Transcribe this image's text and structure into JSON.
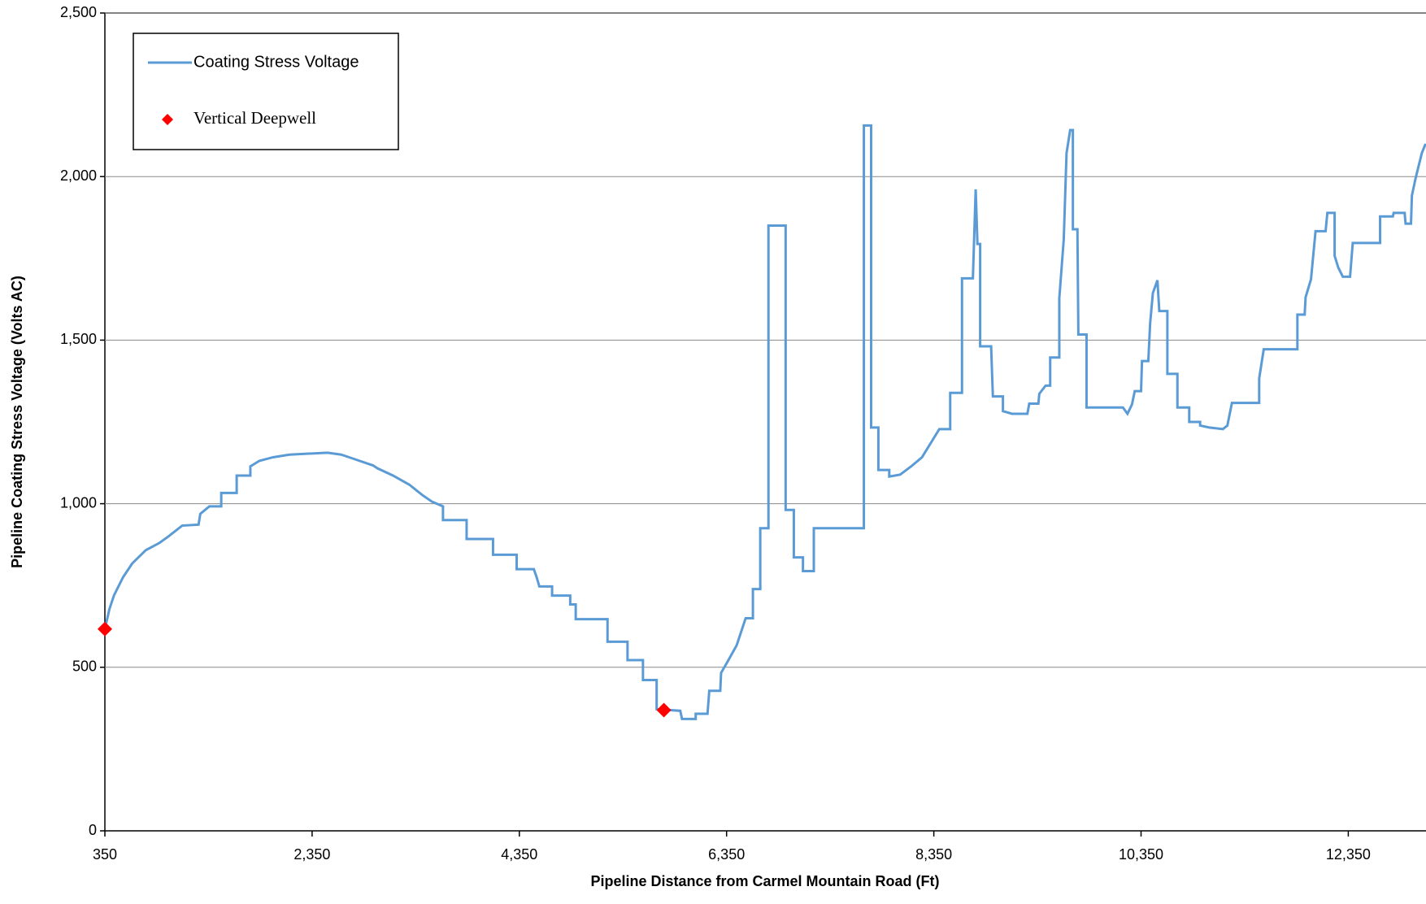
{
  "chart_data": {
    "type": "line",
    "x_label": "Pipeline Distance from Carmel Mountain Road (Ft)",
    "y_label": "Pipeline Coating Stress Voltage (Volts AC)",
    "xlim": [
      350,
      13100
    ],
    "ylim": [
      0,
      2500
    ],
    "xticks": [
      350,
      {
        "value": 2350,
        "label": "2,350"
      },
      {
        "value": 4350,
        "label": "4,350"
      },
      {
        "value": 6350,
        "label": "6,350"
      },
      {
        "value": 8350,
        "label": "8,350"
      },
      {
        "value": 10350,
        "label": "10,350"
      },
      {
        "value": 12350,
        "label": "12,350"
      }
    ],
    "yticks": [
      0,
      500,
      {
        "value": 1000,
        "label": "1,000"
      },
      {
        "value": 1500,
        "label": "1,500"
      },
      {
        "value": 2000,
        "label": "2,000"
      },
      {
        "value": 2500,
        "label": "2,500"
      }
    ],
    "grid": true,
    "legend": "upper left",
    "x": [
      350,
      394,
      438,
      525,
      613,
      745,
      876,
      964,
      1096,
      1254,
      1271,
      1359,
      1473,
      1473,
      1622,
      1622,
      1754,
      1754,
      1841,
      1973,
      2131,
      2499,
      2631,
      2762,
      2938,
      2982,
      3131,
      3289,
      3420,
      3508,
      3613,
      3613,
      3841,
      3841,
      4096,
      4096,
      4324,
      4324,
      4490,
      4517,
      4543,
      4666,
      4666,
      4841,
      4841,
      4894,
      4894,
      5201,
      5201,
      5394,
      5394,
      5543,
      5543,
      5675,
      5675,
      5903,
      5920,
      6052,
      6052,
      6166,
      6183,
      6289,
      6297,
      6359,
      6447,
      6490,
      6534,
      6604,
      6604,
      6675,
      6675,
      6754,
      6754,
      6920,
      6920,
      6999,
      6999,
      7087,
      7087,
      7192,
      7192,
      7675,
      7675,
      7745,
      7745,
      7815,
      7815,
      7920,
      7920,
      8025,
      8131,
      8236,
      8306,
      8403,
      8508,
      8508,
      8622,
      8622,
      8727,
      8754,
      8771,
      8797,
      8797,
      8903,
      8920,
      9017,
      9017,
      9104,
      9253,
      9271,
      9359,
      9368,
      9429,
      9473,
      9473,
      9561,
      9561,
      9604,
      9631,
      9666,
      9692,
      9692,
      9736,
      9745,
      9824,
      9824,
      10175,
      10219,
      10262,
      10289,
      10350,
      10359,
      10420,
      10438,
      10464,
      10508,
      10526,
      10604,
      10604,
      10701,
      10701,
      10815,
      10815,
      10920,
      10920,
      11008,
      11140,
      11183,
      11227,
      11490,
      11490,
      11534,
      11859,
      11859,
      11929,
      11938,
      11990,
      12034,
      12131,
      12148,
      12218,
      12218,
      12253,
      12297,
      12367,
      12393,
      12657,
      12657,
      12780,
      12788,
      12894,
      12903,
      12955,
      12964,
      12999,
      13034,
      13060,
      13096
    ],
    "series": [
      {
        "name": "Coating Stress Voltage",
        "color": "#5b9bd5",
        "values": [
          617,
          678,
          720,
          775,
          817,
          858,
          880,
          900,
          933,
          936,
          969,
          992,
          992,
          1033,
          1033,
          1086,
          1086,
          1114,
          1131,
          1142,
          1150,
          1156,
          1150,
          1136,
          1117,
          1108,
          1086,
          1058,
          1025,
          1006,
          992,
          950,
          950,
          892,
          892,
          844,
          844,
          800,
          800,
          775,
          747,
          747,
          719,
          719,
          692,
          692,
          647,
          647,
          578,
          578,
          522,
          522,
          461,
          461,
          372,
          367,
          342,
          342,
          358,
          358,
          428,
          428,
          483,
          517,
          567,
          608,
          650,
          650,
          739,
          739,
          925,
          925,
          1850,
          1850,
          981,
          981,
          836,
          836,
          794,
          794,
          925,
          925,
          2156,
          2156,
          1233,
          1233,
          1103,
          1103,
          1083,
          1089,
          1114,
          1142,
          1178,
          1228,
          1228,
          1339,
          1339,
          1689,
          1689,
          1961,
          1794,
          1794,
          1481,
          1481,
          1328,
          1328,
          1283,
          1275,
          1275,
          1306,
          1306,
          1336,
          1361,
          1361,
          1447,
          1447,
          1628,
          1808,
          2072,
          2142,
          2142,
          1839,
          1839,
          1517,
          1517,
          1294,
          1294,
          1275,
          1303,
          1344,
          1344,
          1436,
          1436,
          1553,
          1644,
          1683,
          1589,
          1589,
          1397,
          1397,
          1294,
          1294,
          1250,
          1250,
          1239,
          1233,
          1228,
          1239,
          1308,
          1308,
          1383,
          1472,
          1472,
          1578,
          1578,
          1631,
          1686,
          1833,
          1833,
          1889,
          1889,
          1758,
          1722,
          1694,
          1694,
          1797,
          1797,
          1878,
          1878,
          1889,
          1889,
          1856,
          1856,
          1942,
          1994,
          2039,
          2072,
          2100
        ]
      },
      {
        "name": "Vertical Deepwell",
        "color": "#ff0000",
        "marker": "diamond",
        "x": [
          350,
          5745
        ],
        "values": [
          617,
          369
        ]
      }
    ]
  }
}
